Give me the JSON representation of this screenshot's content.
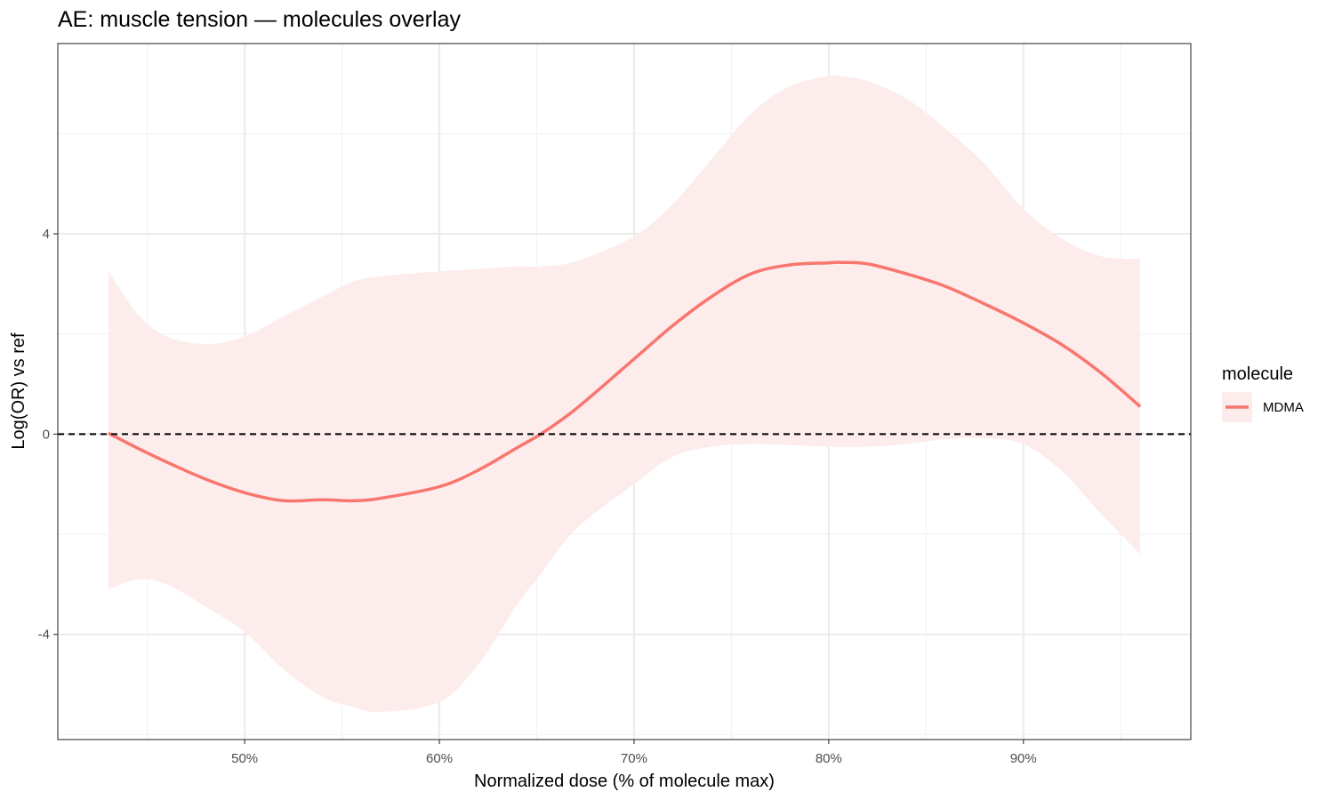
{
  "chart_data": {
    "type": "line",
    "title": "AE: muscle tension — molecules overlay",
    "xlabel": "Normalized dose (% of molecule max)",
    "ylabel": "Log(OR) vs ref",
    "xlim": [
      0.404,
      0.986
    ],
    "ylim": [
      -6.1,
      7.8
    ],
    "x_ticks": [
      0.5,
      0.6,
      0.7,
      0.8,
      0.9
    ],
    "x_tick_labels": [
      "50%",
      "60%",
      "70%",
      "80%",
      "90%"
    ],
    "x_minor_ticks": [
      0.45,
      0.55,
      0.65,
      0.75,
      0.85,
      0.95
    ],
    "y_ticks": [
      -4,
      0,
      4
    ],
    "y_tick_labels": [
      "-4",
      "0",
      "4"
    ],
    "y_minor_ticks": [
      -6,
      -2,
      2,
      6
    ],
    "reference_line": {
      "y": 0,
      "style": "dashed"
    },
    "grid": true,
    "legend": {
      "title": "molecule",
      "position": "right"
    },
    "series": [
      {
        "name": "MDMA",
        "color": "#F8766D",
        "band_color": "#FDECEC",
        "x": [
          0.43,
          0.445,
          0.46,
          0.48,
          0.5,
          0.52,
          0.54,
          0.556,
          0.57,
          0.6,
          0.62,
          0.64,
          0.652,
          0.67,
          0.7,
          0.72,
          0.74,
          0.76,
          0.78,
          0.8,
          0.806,
          0.82,
          0.84,
          0.86,
          0.88,
          0.9,
          0.92,
          0.94,
          0.96
        ],
        "y": [
          0.02,
          -0.28,
          -0.56,
          -0.9,
          -1.17,
          -1.33,
          -1.31,
          -1.33,
          -1.28,
          -1.05,
          -0.72,
          -0.27,
          0.0,
          0.5,
          1.5,
          2.17,
          2.75,
          3.2,
          3.38,
          3.42,
          3.43,
          3.4,
          3.2,
          2.95,
          2.6,
          2.22,
          1.78,
          1.22,
          0.55
        ],
        "upper": [
          3.25,
          2.4,
          1.95,
          1.8,
          1.95,
          2.35,
          2.75,
          3.05,
          3.15,
          3.25,
          3.3,
          3.35,
          3.35,
          3.45,
          3.95,
          4.6,
          5.5,
          6.4,
          6.95,
          7.15,
          7.15,
          7.05,
          6.7,
          6.1,
          5.4,
          4.5,
          3.9,
          3.55,
          3.5
        ],
        "lower": [
          -3.1,
          -2.9,
          -3.0,
          -3.45,
          -3.95,
          -4.7,
          -5.25,
          -5.45,
          -5.55,
          -5.35,
          -4.6,
          -3.4,
          -2.8,
          -1.9,
          -1.0,
          -0.45,
          -0.25,
          -0.2,
          -0.22,
          -0.25,
          -0.26,
          -0.25,
          -0.2,
          -0.1,
          -0.08,
          -0.2,
          -0.75,
          -1.6,
          -2.4
        ]
      }
    ]
  }
}
